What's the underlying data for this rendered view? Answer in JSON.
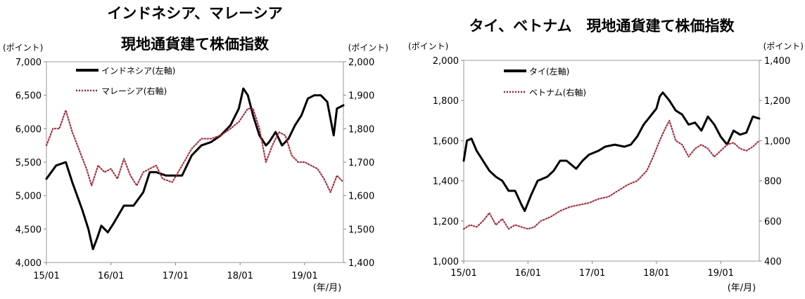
{
  "chart_data": [
    {
      "type": "line",
      "title_line1": "インドネシア、マレーシア",
      "title_line2": "現地通貨建て株価指数",
      "left_unit": "(ポイント)",
      "right_unit": "(ポイント)",
      "xlabel": "(年/月)",
      "x_ticks": [
        "15/01",
        "16/01",
        "17/01",
        "18/01",
        "19/01"
      ],
      "x_range": [
        2015.0,
        2019.6
      ],
      "left_axis": {
        "range": [
          4000,
          7000
        ],
        "ticks": [
          4000,
          4500,
          5000,
          5500,
          6000,
          6500,
          7000
        ],
        "tick_labels": [
          "4,000",
          "4,500",
          "5,000",
          "5,500",
          "6,000",
          "6,500",
          "7,000"
        ]
      },
      "right_axis": {
        "range": [
          1400,
          2000
        ],
        "ticks": [
          1400,
          1500,
          1600,
          1700,
          1800,
          1900,
          2000
        ],
        "tick_labels": [
          "1,400",
          "1,500",
          "1,600",
          "1,700",
          "1,800",
          "1,900",
          "2,000"
        ]
      },
      "series": [
        {
          "name": "インドネシア(左軸)",
          "axis": "left",
          "color": "#000000",
          "style": "solid",
          "x": [
            2015.0,
            2015.15,
            2015.3,
            2015.4,
            2015.55,
            2015.65,
            2015.72,
            2015.78,
            2015.85,
            2015.95,
            2016.05,
            2016.2,
            2016.35,
            2016.5,
            2016.6,
            2016.7,
            2016.85,
            2016.95,
            2017.1,
            2017.25,
            2017.4,
            2017.55,
            2017.7,
            2017.85,
            2017.98,
            2018.05,
            2018.12,
            2018.2,
            2018.3,
            2018.4,
            2018.45,
            2018.55,
            2018.65,
            2018.75,
            2018.85,
            2018.95,
            2019.05,
            2019.15,
            2019.25,
            2019.35,
            2019.45,
            2019.5,
            2019.6
          ],
          "y": [
            5250,
            5450,
            5500,
            5200,
            4800,
            4500,
            4200,
            4350,
            4550,
            4450,
            4600,
            4850,
            4850,
            5050,
            5350,
            5350,
            5300,
            5300,
            5300,
            5600,
            5750,
            5800,
            5900,
            6050,
            6300,
            6600,
            6500,
            6200,
            5900,
            5750,
            5800,
            5950,
            5750,
            5850,
            6050,
            6200,
            6450,
            6500,
            6500,
            6400,
            5900,
            6300,
            6350
          ]
        },
        {
          "name": "マレーシア(右軸)",
          "axis": "right",
          "color": "#c0182b",
          "style": "dotted",
          "x": [
            2015.0,
            2015.1,
            2015.2,
            2015.3,
            2015.4,
            2015.5,
            2015.58,
            2015.62,
            2015.7,
            2015.8,
            2015.9,
            2016.0,
            2016.1,
            2016.2,
            2016.3,
            2016.4,
            2016.5,
            2016.6,
            2016.7,
            2016.8,
            2016.95,
            2017.1,
            2017.25,
            2017.4,
            2017.55,
            2017.7,
            2017.85,
            2017.98,
            2018.05,
            2018.12,
            2018.2,
            2018.3,
            2018.4,
            2018.5,
            2018.6,
            2018.7,
            2018.8,
            2018.9,
            2019.0,
            2019.1,
            2019.2,
            2019.3,
            2019.4,
            2019.5,
            2019.6
          ],
          "y": [
            1750,
            1800,
            1800,
            1855,
            1790,
            1740,
            1700,
            1680,
            1630,
            1690,
            1670,
            1680,
            1650,
            1710,
            1660,
            1630,
            1670,
            1680,
            1690,
            1650,
            1640,
            1690,
            1740,
            1770,
            1770,
            1780,
            1800,
            1820,
            1840,
            1860,
            1860,
            1800,
            1700,
            1750,
            1790,
            1780,
            1720,
            1700,
            1700,
            1690,
            1680,
            1650,
            1610,
            1660,
            1640
          ]
        }
      ]
    },
    {
      "type": "line",
      "title_line1": "タイ、ベトナム　現地通貨建て株価指数",
      "left_unit": "(ポイント)",
      "right_unit": "(ポイント)",
      "xlabel": "(年/月)",
      "x_ticks": [
        "15/01",
        "16/01",
        "17/01",
        "18/01",
        "19/01"
      ],
      "x_range": [
        2015.0,
        2019.6
      ],
      "left_axis": {
        "range": [
          1000,
          2000
        ],
        "ticks": [
          1000,
          1200,
          1400,
          1600,
          1800,
          2000
        ],
        "tick_labels": [
          "1,000",
          "1,200",
          "1,400",
          "1,600",
          "1,800",
          "2,000"
        ]
      },
      "right_axis": {
        "range": [
          400,
          1400
        ],
        "ticks": [
          400,
          600,
          800,
          1000,
          1200,
          1400
        ],
        "tick_labels": [
          "400",
          "600",
          "800",
          "1,000",
          "1,200",
          "1,400"
        ]
      },
      "series": [
        {
          "name": "タイ(左軸)",
          "axis": "left",
          "color": "#000000",
          "style": "solid",
          "x": [
            2015.0,
            2015.05,
            2015.12,
            2015.2,
            2015.3,
            2015.4,
            2015.5,
            2015.6,
            2015.7,
            2015.8,
            2015.9,
            2015.95,
            2016.05,
            2016.15,
            2016.3,
            2016.4,
            2016.5,
            2016.6,
            2016.75,
            2016.85,
            2016.95,
            2017.1,
            2017.2,
            2017.35,
            2017.5,
            2017.6,
            2017.7,
            2017.8,
            2017.9,
            2018.0,
            2018.05,
            2018.1,
            2018.2,
            2018.3,
            2018.4,
            2018.5,
            2018.6,
            2018.7,
            2018.8,
            2018.9,
            2019.0,
            2019.1,
            2019.2,
            2019.3,
            2019.4,
            2019.5,
            2019.6
          ],
          "y": [
            1500,
            1600,
            1610,
            1550,
            1500,
            1450,
            1420,
            1400,
            1350,
            1350,
            1280,
            1250,
            1330,
            1400,
            1420,
            1450,
            1500,
            1500,
            1460,
            1500,
            1530,
            1550,
            1570,
            1580,
            1570,
            1580,
            1620,
            1680,
            1720,
            1760,
            1820,
            1840,
            1800,
            1750,
            1730,
            1680,
            1690,
            1650,
            1720,
            1680,
            1620,
            1580,
            1650,
            1630,
            1640,
            1720,
            1710
          ]
        },
        {
          "name": "ベトナム(右軸)",
          "axis": "right",
          "color": "#c0182b",
          "style": "dotted",
          "x": [
            2015.0,
            2015.1,
            2015.2,
            2015.3,
            2015.4,
            2015.5,
            2015.6,
            2015.7,
            2015.8,
            2015.9,
            2016.0,
            2016.1,
            2016.2,
            2016.35,
            2016.5,
            2016.65,
            2016.8,
            2016.95,
            2017.1,
            2017.25,
            2017.4,
            2017.55,
            2017.7,
            2017.85,
            2017.95,
            2018.05,
            2018.12,
            2018.2,
            2018.3,
            2018.4,
            2018.5,
            2018.6,
            2018.7,
            2018.8,
            2018.9,
            2019.0,
            2019.1,
            2019.2,
            2019.3,
            2019.4,
            2019.5,
            2019.6
          ],
          "y": [
            560,
            580,
            570,
            600,
            640,
            580,
            610,
            560,
            580,
            570,
            560,
            570,
            600,
            620,
            650,
            670,
            680,
            690,
            710,
            720,
            750,
            780,
            800,
            850,
            920,
            1000,
            1050,
            1100,
            1000,
            980,
            920,
            960,
            980,
            960,
            920,
            950,
            980,
            990,
            960,
            950,
            970,
            1000
          ]
        }
      ]
    }
  ]
}
